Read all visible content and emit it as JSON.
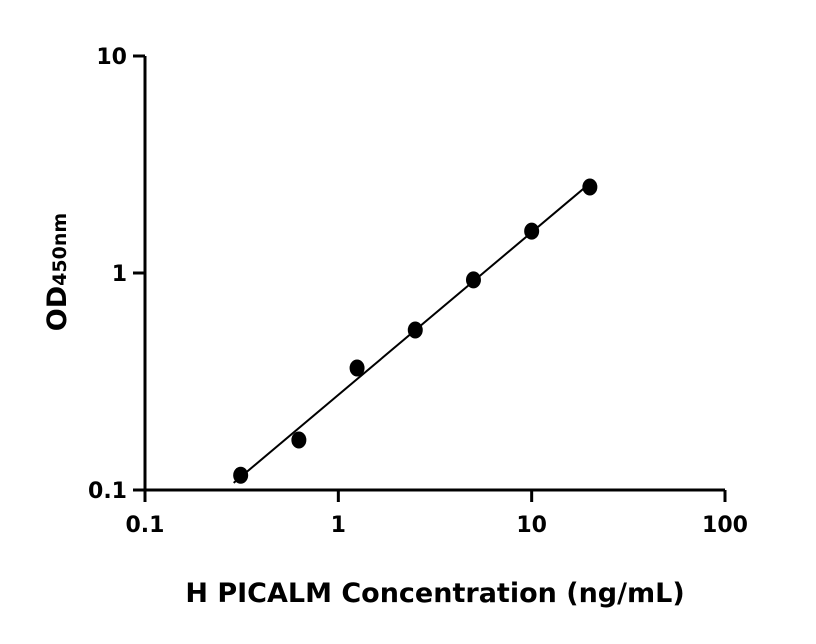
{
  "chart_data": {
    "type": "scatter",
    "xlabel": "H PICALM Concentration (ng/mL)",
    "ylabel_main": "OD",
    "ylabel_sub": "450nm",
    "xscale": "log",
    "yscale": "log",
    "xlim": [
      0.1,
      100
    ],
    "ylim": [
      0.1,
      10
    ],
    "xticks": [
      "0.1",
      "1",
      "10",
      "100"
    ],
    "yticks": [
      "0.1",
      "1",
      "10"
    ],
    "grid": false,
    "fit_line": true,
    "color": "#000000",
    "points": [
      {
        "x": 0.3125,
        "y": 0.117
      },
      {
        "x": 0.625,
        "y": 0.17
      },
      {
        "x": 1.25,
        "y": 0.365
      },
      {
        "x": 2.5,
        "y": 0.546
      },
      {
        "x": 5,
        "y": 0.93
      },
      {
        "x": 10,
        "y": 1.56
      },
      {
        "x": 20,
        "y": 2.49
      }
    ]
  }
}
